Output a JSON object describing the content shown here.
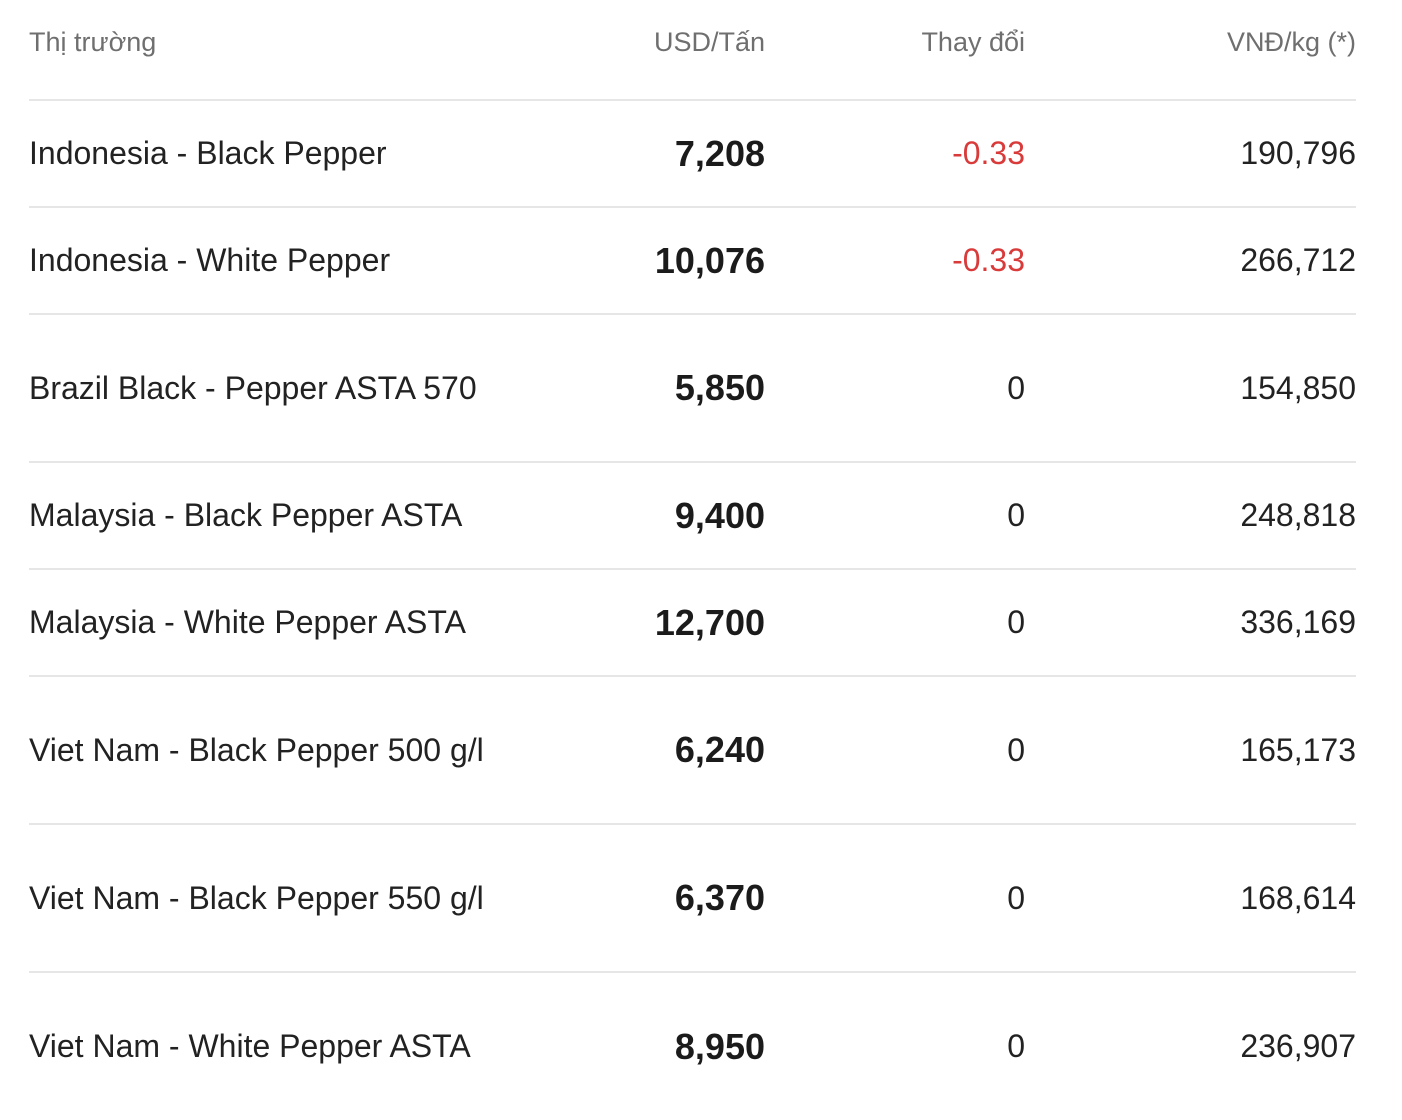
{
  "table": {
    "headers": {
      "market": "Thị trường",
      "usd": "USD/Tấn",
      "change": "Thay đổi",
      "vnd": "VNĐ/kg (*)"
    },
    "rows": [
      {
        "market": "Indonesia - Black Pepper",
        "usd": "7,208",
        "change": "-0.33",
        "vnd": "190,796"
      },
      {
        "market": "Indonesia - White Pepper",
        "usd": "10,076",
        "change": "-0.33",
        "vnd": "266,712"
      },
      {
        "market": "Brazil Black - Pepper ASTA 570",
        "usd": "5,850",
        "change": "0",
        "vnd": "154,850"
      },
      {
        "market": "Malaysia - Black Pepper ASTA",
        "usd": "9,400",
        "change": "0",
        "vnd": "248,818"
      },
      {
        "market": "Malaysia - White Pepper ASTA",
        "usd": "12,700",
        "change": "0",
        "vnd": "336,169"
      },
      {
        "market": "Viet Nam - Black Pepper 500 g/l",
        "usd": "6,240",
        "change": "0",
        "vnd": "165,173"
      },
      {
        "market": "Viet Nam - Black Pepper 550 g/l",
        "usd": "6,370",
        "change": "0",
        "vnd": "168,614"
      },
      {
        "market": "Viet Nam - White Pepper ASTA",
        "usd": "8,950",
        "change": "0",
        "vnd": "236,907"
      }
    ]
  },
  "colors": {
    "negative_change": "#d93a3a",
    "header_text": "#6f6f6f",
    "divider": "#e6e6e6"
  }
}
